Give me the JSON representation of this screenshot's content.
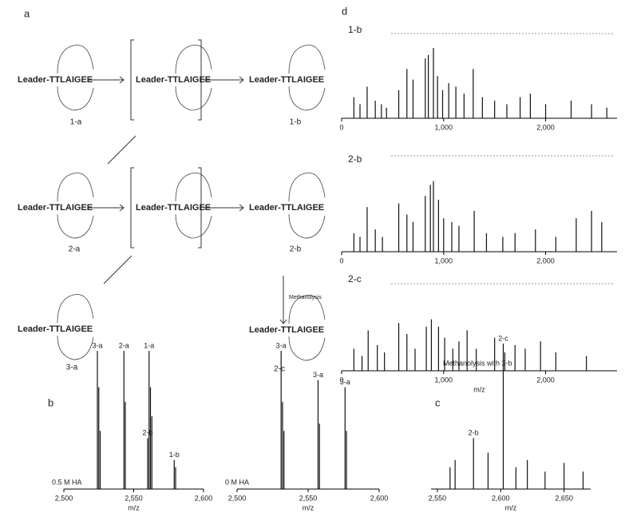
{
  "panel_labels": [
    "a",
    "b",
    "c",
    "d"
  ],
  "scheme": {
    "compounds": [
      {
        "text": "Leader-TTLAIGEE",
        "id": "1-a"
      },
      {
        "text": "Leader-TTLAIGEE",
        "id": null
      },
      {
        "text": "Leader-TTLAIGEE",
        "id": "1-b"
      },
      {
        "text": "Leader-TTLAIGEE",
        "id": "2-a"
      },
      {
        "text": "Leader-TTLAIGEE",
        "id": null
      },
      {
        "text": "Leader-TTLAIGEE",
        "id": "2-b"
      },
      {
        "text": "Leader-TTLAIGEE",
        "id": "3-a"
      },
      {
        "text": "Leader-TTLAIGEE",
        "id": "2-c"
      }
    ],
    "methanolysis": "Methanolysis"
  },
  "chart_data": [
    {
      "type": "stem",
      "annotation": "0.5 M HA",
      "x_label": "m/z",
      "x": [
        2524,
        2525,
        2526,
        2543,
        2544,
        2560,
        2561,
        2562,
        2563,
        2579,
        2580
      ],
      "values": [
        95,
        70,
        40,
        95,
        60,
        35,
        95,
        70,
        50,
        20,
        15
      ],
      "peak_labels": [
        "3-a",
        null,
        null,
        "2-a",
        null,
        "2-b",
        "1-a",
        null,
        null,
        "1-b",
        null
      ],
      "xlim": [
        2500,
        2600
      ],
      "ylim": [
        0,
        100
      ],
      "xticks": [
        {
          "value": 2500,
          "label": "2,500"
        },
        {
          "value": 2550,
          "label": "2,550"
        },
        {
          "value": 2600,
          "label": "2,600"
        }
      ]
    },
    {
      "type": "stem",
      "annotation": "0 M HA",
      "x_label": "m/z",
      "x": [
        2531,
        2532,
        2533,
        2557,
        2558,
        2576,
        2577
      ],
      "values": [
        95,
        60,
        40,
        75,
        45,
        70,
        40
      ],
      "peak_labels": [
        "3-a",
        null,
        null,
        "3-a",
        null,
        "3-a",
        null
      ],
      "xlim": [
        2500,
        2600
      ],
      "ylim": [
        0,
        100
      ],
      "xticks": [
        {
          "value": 2500,
          "label": "2,500"
        },
        {
          "value": 2550,
          "label": "2,550"
        },
        {
          "value": 2600,
          "label": "2,600"
        }
      ]
    },
    {
      "type": "stem",
      "annotation": "Methanolysis with 2-b",
      "x_label": "m/z",
      "x": [
        2560,
        2564,
        2578.5,
        2590,
        2602,
        2612,
        2621,
        2635,
        2650,
        2665
      ],
      "values": [
        15,
        20,
        35,
        25,
        100,
        15,
        20,
        12,
        18,
        12
      ],
      "peak_labels": [
        null,
        null,
        "2-b",
        null,
        "2-c",
        null,
        null,
        null,
        null,
        null
      ],
      "xlim": [
        2545,
        2671
      ],
      "ylim": [
        0,
        100
      ],
      "xticks": [
        {
          "value": 2550,
          "label": "2,550"
        },
        {
          "value": 2600,
          "label": "2,600"
        },
        {
          "value": 2650,
          "label": "2,650"
        }
      ]
    },
    {
      "type": "stem",
      "title": "1-b",
      "x": [
        120,
        180,
        250,
        330,
        390,
        440,
        560,
        640,
        700,
        820,
        850,
        900,
        940,
        990,
        1050,
        1120,
        1200,
        1290,
        1380,
        1500,
        1620,
        1750,
        1850,
        2000,
        2250,
        2450,
        2600
      ],
      "values": [
        30,
        20,
        45,
        25,
        20,
        15,
        40,
        70,
        55,
        85,
        90,
        100,
        60,
        40,
        50,
        45,
        35,
        70,
        30,
        25,
        20,
        30,
        35,
        20,
        25,
        20,
        15
      ],
      "xlim": [
        0,
        2700
      ],
      "ylim": [
        0,
        100
      ],
      "xticks": [
        0,
        {
          "value": 1000,
          "label": "1,000"
        },
        {
          "value": 2000,
          "label": "2,000"
        }
      ]
    },
    {
      "type": "stem",
      "title": "2-b",
      "x": [
        120,
        180,
        250,
        330,
        400,
        560,
        640,
        700,
        820,
        870,
        900,
        950,
        1000,
        1080,
        1150,
        1300,
        1420,
        1580,
        1700,
        1900,
        2100,
        2300,
        2450,
        2550
      ],
      "values": [
        25,
        20,
        60,
        30,
        20,
        65,
        50,
        40,
        75,
        90,
        95,
        70,
        45,
        40,
        35,
        55,
        25,
        20,
        25,
        30,
        20,
        45,
        55,
        40
      ],
      "xlim": [
        0,
        2700
      ],
      "ylim": [
        0,
        100
      ],
      "xticks": [
        0,
        {
          "value": 1000,
          "label": "1,000"
        },
        {
          "value": 2000,
          "label": "2,000"
        }
      ]
    },
    {
      "type": "stem",
      "title": "2-c",
      "x_label": "m/z",
      "x": [
        120,
        200,
        260,
        350,
        420,
        560,
        640,
        720,
        830,
        880,
        950,
        1010,
        1090,
        1150,
        1230,
        1320,
        1500,
        1600,
        1700,
        1800,
        1950,
        2100,
        2400
      ],
      "values": [
        30,
        20,
        55,
        35,
        25,
        65,
        50,
        30,
        60,
        70,
        60,
        45,
        30,
        40,
        55,
        30,
        45,
        25,
        35,
        30,
        40,
        25,
        20
      ],
      "xlim": [
        0,
        2700
      ],
      "ylim": [
        0,
        100
      ],
      "xticks": [
        0,
        {
          "value": 1000,
          "label": "1,000"
        },
        {
          "value": 2000,
          "label": "2,000"
        }
      ]
    }
  ]
}
